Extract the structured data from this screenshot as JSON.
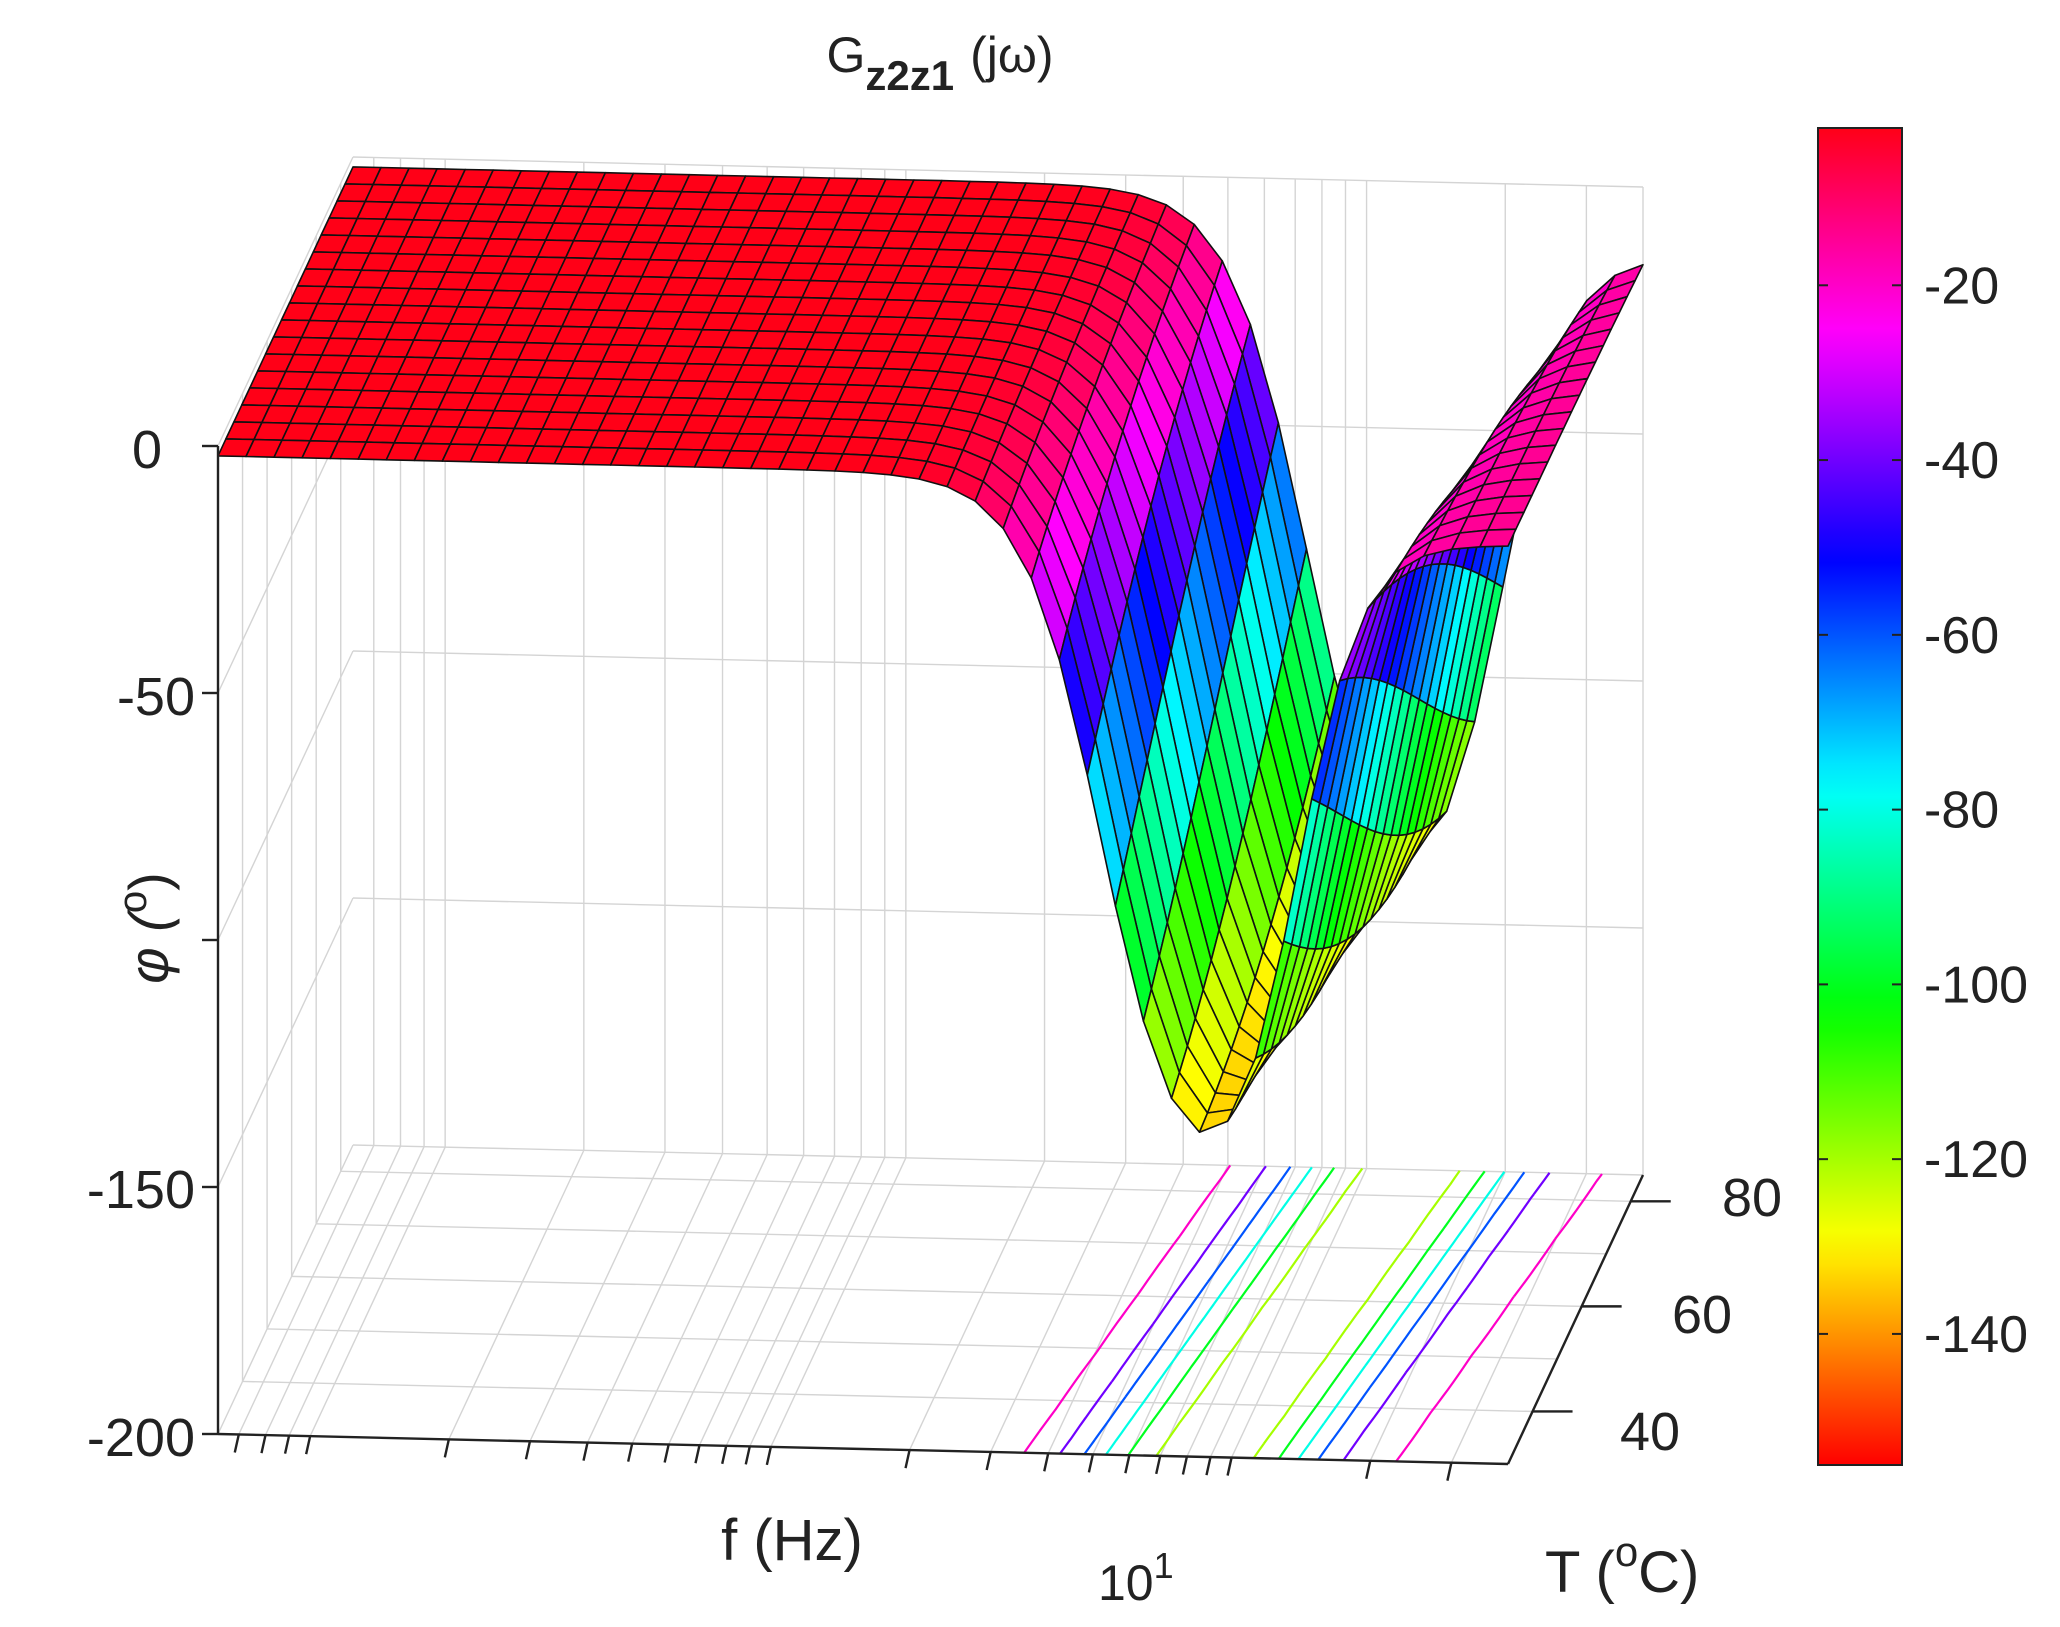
{
  "chart_data": {
    "type": "surface",
    "title": {
      "main": "G",
      "subscript": "z2z1",
      "suffix": "(jω)"
    },
    "xlabel": "f (Hz)",
    "ylabel": {
      "main": "T (",
      "superscript": "o",
      "suffix": "C)"
    },
    "zlabel": {
      "main": "φ (",
      "superscript": "o",
      "suffix": ")"
    },
    "x_scale": "log",
    "x_range_log10": [
      -1.2,
      1.6
    ],
    "x_tick_label": {
      "base": "10",
      "exponent": "1"
    },
    "y_range": [
      30,
      85
    ],
    "y_ticks": [
      "40",
      "60",
      "80"
    ],
    "z_range": [
      -200,
      0
    ],
    "z_ticks": [
      "0",
      "-50",
      "-150",
      "-200"
    ],
    "colorbar": {
      "ticks": [
        "-20",
        "-40",
        "-60",
        "-80",
        "-100",
        "-120",
        "-140"
      ],
      "range": [
        -155,
        -2
      ]
    },
    "model": {
      "description": "phase of G_z2z1(jω): flat near 0° at low frequency, rolling off to about -150° near f ≈ 15 Hz, then recovering toward higher frequency; the roll-off shifts slightly with temperature",
      "plateau_deg": -2,
      "min_deg": -152,
      "corner_log10f_at_30C": 0.72,
      "corner_shift_per_degC": 0.0028
    },
    "contour_levels": [
      -20,
      -40,
      -60,
      -80,
      -100,
      -120,
      -140
    ],
    "colors": {
      "mesh_edge": "#111111",
      "grid": "#d4d4d4",
      "axis": "#222222"
    }
  }
}
